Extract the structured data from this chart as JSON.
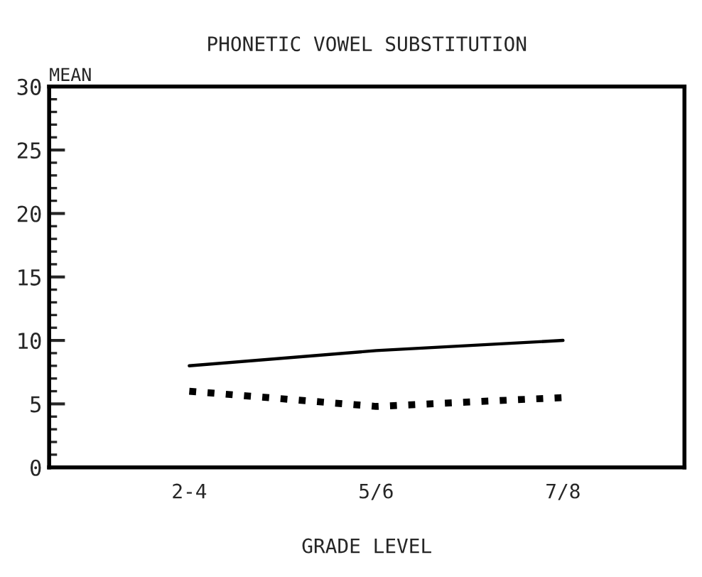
{
  "chart_data": {
    "type": "line",
    "title": "PHONETIC VOWEL SUBSTITUTION",
    "xlabel": "GRADE LEVEL",
    "ylabel": "MEAN",
    "categories": [
      "2-4",
      "5/6",
      "7/8"
    ],
    "series": [
      {
        "color": "#000000",
        "line_style": "solid",
        "values": [
          8.0,
          9.2,
          10.0
        ]
      },
      {
        "color": "#000000",
        "line_style": "dotted",
        "values": [
          6.0,
          4.8,
          5.5
        ]
      }
    ],
    "ylim": [
      0,
      30
    ],
    "yticks": [
      0,
      5,
      10,
      15,
      20,
      25,
      30
    ],
    "grid": false,
    "legend": false,
    "marker": "none"
  }
}
